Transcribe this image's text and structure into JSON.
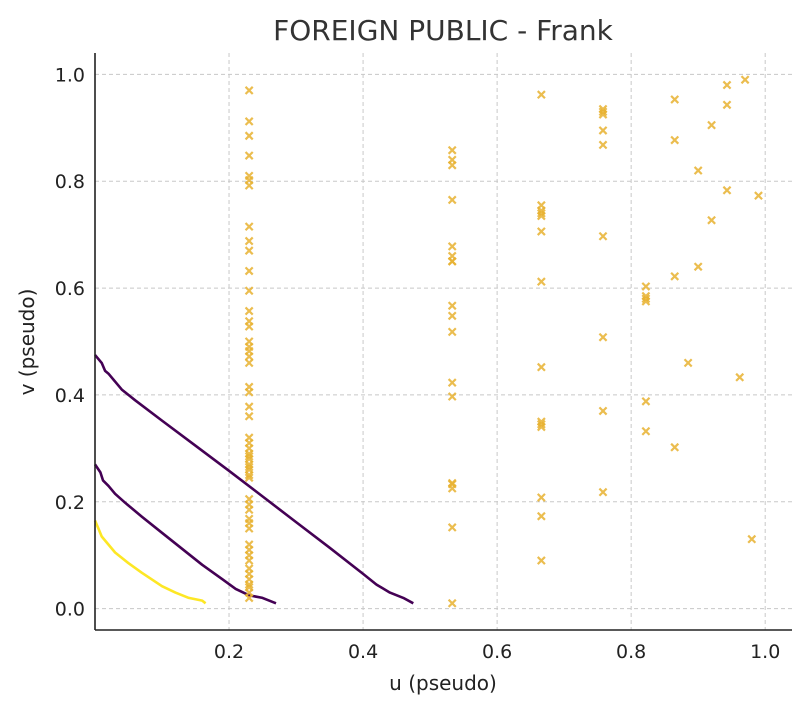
{
  "chart_data": {
    "type": "scatter",
    "title": "FOREIGN PUBLIC - Frank",
    "xlabel": "u (pseudo)",
    "ylabel": "v (pseudo)",
    "xlim": [
      0.0,
      1.04
    ],
    "ylim": [
      -0.04,
      1.04
    ],
    "xticks": [
      0.2,
      0.4,
      0.6,
      0.8,
      1.0
    ],
    "yticks": [
      0.0,
      0.2,
      0.4,
      0.6,
      0.8,
      1.0
    ],
    "xtick_labels": [
      "0.2",
      "0.4",
      "0.6",
      "0.8",
      "1.0"
    ],
    "ytick_labels": [
      "0.0",
      "0.2",
      "0.4",
      "0.6",
      "0.8",
      "1.0"
    ],
    "grid": true,
    "colors": {
      "points": "#e8b230",
      "curve_dark": "#440154",
      "curve_yellow": "#fde725"
    },
    "points": {
      "marker": "x",
      "x": [
        0.23,
        0.23,
        0.23,
        0.23,
        0.23,
        0.23,
        0.23,
        0.23,
        0.23,
        0.23,
        0.23,
        0.23,
        0.23,
        0.23,
        0.23,
        0.23,
        0.23,
        0.23,
        0.23,
        0.23,
        0.23,
        0.23,
        0.23,
        0.23,
        0.23,
        0.23,
        0.23,
        0.23,
        0.23,
        0.23,
        0.23,
        0.23,
        0.23,
        0.23,
        0.23,
        0.23,
        0.23,
        0.23,
        0.23,
        0.23,
        0.23,
        0.23,
        0.23,
        0.23,
        0.23,
        0.23,
        0.23,
        0.23,
        0.23,
        0.23,
        0.23,
        0.23,
        0.533,
        0.533,
        0.533,
        0.533,
        0.533,
        0.533,
        0.533,
        0.533,
        0.533,
        0.533,
        0.533,
        0.533,
        0.533,
        0.533,
        0.533,
        0.533,
        0.533,
        0.533,
        0.666,
        0.666,
        0.666,
        0.666,
        0.666,
        0.666,
        0.666,
        0.666,
        0.666,
        0.666,
        0.666,
        0.666,
        0.666,
        0.666,
        0.758,
        0.758,
        0.758,
        0.758,
        0.758,
        0.758,
        0.758,
        0.758,
        0.758,
        0.822,
        0.822,
        0.822,
        0.822,
        0.822,
        0.822,
        0.865,
        0.865,
        0.865,
        0.865,
        0.885,
        0.9,
        0.9,
        0.92,
        0.92,
        0.943,
        0.943,
        0.943,
        0.962,
        0.97,
        0.98,
        0.99
      ],
      "y": [
        0.97,
        0.912,
        0.885,
        0.848,
        0.81,
        0.802,
        0.792,
        0.715,
        0.688,
        0.67,
        0.632,
        0.595,
        0.557,
        0.538,
        0.528,
        0.5,
        0.49,
        0.482,
        0.472,
        0.46,
        0.415,
        0.405,
        0.378,
        0.36,
        0.32,
        0.31,
        0.29,
        0.28,
        0.27,
        0.26,
        0.25,
        0.245,
        0.195,
        0.185,
        0.168,
        0.15,
        0.12,
        0.11,
        0.1,
        0.09,
        0.075,
        0.065,
        0.055,
        0.045,
        0.04,
        0.03,
        0.02,
        0.285,
        0.3,
        0.265,
        0.205,
        0.16,
        0.858,
        0.84,
        0.83,
        0.765,
        0.678,
        0.66,
        0.65,
        0.567,
        0.548,
        0.518,
        0.423,
        0.397,
        0.233,
        0.225,
        0.152,
        0.01,
        0.235,
        0.65,
        0.962,
        0.755,
        0.745,
        0.735,
        0.706,
        0.612,
        0.452,
        0.35,
        0.34,
        0.208,
        0.173,
        0.09,
        0.74,
        0.345,
        0.935,
        0.925,
        0.895,
        0.868,
        0.697,
        0.508,
        0.37,
        0.218,
        0.93,
        0.603,
        0.585,
        0.575,
        0.388,
        0.332,
        0.58,
        0.953,
        0.877,
        0.622,
        0.302,
        0.46,
        0.82,
        0.64,
        0.905,
        0.727,
        0.98,
        0.943,
        0.783,
        0.433,
        0.99,
        0.13,
        0.773
      ]
    },
    "curves": [
      {
        "color": "dark",
        "x": [
          0.0,
          0.01,
          0.015,
          0.02,
          0.03,
          0.04,
          0.06,
          0.1,
          0.15,
          0.2,
          0.25,
          0.3,
          0.35,
          0.4,
          0.42,
          0.44,
          0.46,
          0.475
        ],
        "y": [
          0.475,
          0.46,
          0.445,
          0.44,
          0.425,
          0.41,
          0.39,
          0.352,
          0.305,
          0.258,
          0.21,
          0.162,
          0.114,
          0.065,
          0.045,
          0.03,
          0.02,
          0.01
        ]
      },
      {
        "color": "dark",
        "x": [
          0.0,
          0.008,
          0.012,
          0.02,
          0.03,
          0.045,
          0.07,
          0.1,
          0.13,
          0.16,
          0.19,
          0.21,
          0.23,
          0.25,
          0.27
        ],
        "y": [
          0.27,
          0.255,
          0.24,
          0.23,
          0.215,
          0.198,
          0.172,
          0.142,
          0.112,
          0.082,
          0.055,
          0.037,
          0.025,
          0.02,
          0.01
        ]
      },
      {
        "color": "yellow",
        "x": [
          0.0,
          0.005,
          0.01,
          0.02,
          0.03,
          0.05,
          0.07,
          0.1,
          0.12,
          0.14,
          0.16,
          0.165
        ],
        "y": [
          0.165,
          0.15,
          0.135,
          0.12,
          0.105,
          0.085,
          0.067,
          0.042,
          0.03,
          0.02,
          0.015,
          0.01
        ]
      }
    ]
  }
}
